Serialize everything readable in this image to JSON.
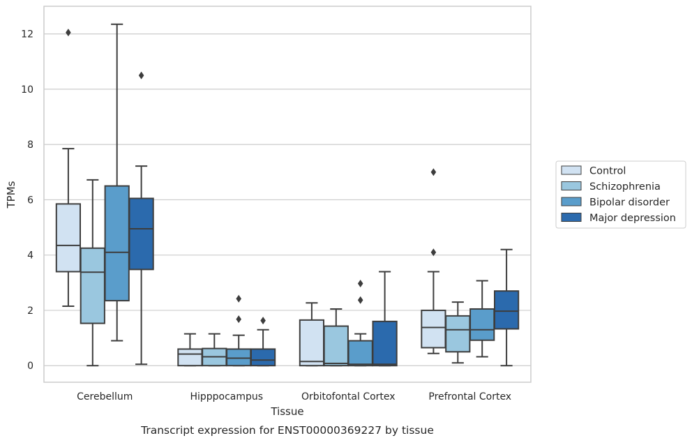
{
  "chart_data": {
    "type": "box",
    "title": "",
    "caption": "Transcript expression for ENST00000369227 by tissue",
    "xlabel": "Tissue",
    "ylabel": "TPMs",
    "ylim": [
      -0.6,
      13.0
    ],
    "yticks": [
      0,
      2,
      4,
      6,
      8,
      10,
      12
    ],
    "grid": "horizontal",
    "legend_position": "right",
    "categories": [
      "Cerebellum",
      "Hipppocampus",
      "Orbitofontal Cortex",
      "Prefrontal Cortex"
    ],
    "series": [
      {
        "name": "Control",
        "color": "#d1e2f2",
        "boxes": [
          {
            "whisker_low": 2.15,
            "q1": 3.4,
            "median": 4.35,
            "q3": 5.85,
            "whisker_high": 7.85,
            "outliers": [
              12.05
            ]
          },
          {
            "whisker_low": 0.0,
            "q1": 0.0,
            "median": 0.42,
            "q3": 0.6,
            "whisker_high": 1.15,
            "outliers": []
          },
          {
            "whisker_low": 0.0,
            "q1": 0.0,
            "median": 0.15,
            "q3": 1.65,
            "whisker_high": 2.27,
            "outliers": []
          },
          {
            "whisker_low": 0.44,
            "q1": 0.65,
            "median": 1.38,
            "q3": 2.0,
            "whisker_high": 3.4,
            "outliers": [
              4.1,
              7.0
            ]
          }
        ]
      },
      {
        "name": "Schizophrenia",
        "color": "#9ac7df",
        "boxes": [
          {
            "whisker_low": 0.0,
            "q1": 1.53,
            "median": 3.38,
            "q3": 4.25,
            "whisker_high": 6.72,
            "outliers": []
          },
          {
            "whisker_low": 0.0,
            "q1": 0.0,
            "median": 0.32,
            "q3": 0.62,
            "whisker_high": 1.15,
            "outliers": []
          },
          {
            "whisker_low": 0.0,
            "q1": 0.0,
            "median": 0.08,
            "q3": 1.43,
            "whisker_high": 2.05,
            "outliers": []
          },
          {
            "whisker_low": 0.1,
            "q1": 0.5,
            "median": 1.3,
            "q3": 1.8,
            "whisker_high": 2.3,
            "outliers": []
          }
        ]
      },
      {
        "name": "Bipolar disorder",
        "color": "#5a9dcb",
        "boxes": [
          {
            "whisker_low": 0.9,
            "q1": 2.35,
            "median": 4.1,
            "q3": 6.5,
            "whisker_high": 12.35,
            "outliers": []
          },
          {
            "whisker_low": 0.0,
            "q1": 0.0,
            "median": 0.27,
            "q3": 0.6,
            "whisker_high": 1.1,
            "outliers": [
              1.68,
              2.42
            ]
          },
          {
            "whisker_low": 0.0,
            "q1": 0.0,
            "median": 0.05,
            "q3": 0.9,
            "whisker_high": 1.15,
            "outliers": [
              2.37,
              2.97
            ]
          },
          {
            "whisker_low": 0.32,
            "q1": 0.92,
            "median": 1.3,
            "q3": 2.05,
            "whisker_high": 3.07,
            "outliers": []
          }
        ]
      },
      {
        "name": "Major depression",
        "color": "#2b6aad",
        "boxes": [
          {
            "whisker_low": 0.05,
            "q1": 3.48,
            "median": 4.95,
            "q3": 6.05,
            "whisker_high": 7.22,
            "outliers": [
              10.5
            ]
          },
          {
            "whisker_low": 0.0,
            "q1": 0.0,
            "median": 0.2,
            "q3": 0.6,
            "whisker_high": 1.3,
            "outliers": [
              1.63
            ]
          },
          {
            "whisker_low": 0.0,
            "q1": 0.0,
            "median": 0.05,
            "q3": 1.6,
            "whisker_high": 3.4,
            "outliers": []
          },
          {
            "whisker_low": 0.0,
            "q1": 1.33,
            "median": 1.97,
            "q3": 2.7,
            "whisker_high": 4.2,
            "outliers": []
          }
        ]
      }
    ]
  }
}
